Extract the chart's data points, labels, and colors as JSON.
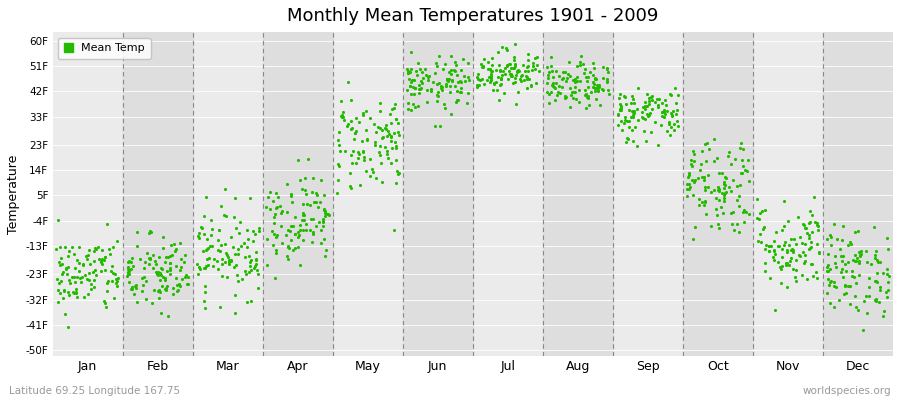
{
  "title": "Monthly Mean Temperatures 1901 - 2009",
  "ylabel": "Temperature",
  "subtitle_left": "Latitude 69.25 Longitude 167.75",
  "subtitle_right": "worldspecies.org",
  "legend_label": "Mean Temp",
  "dot_color": "#22bb00",
  "background_color": "#ffffff",
  "plot_bg_color": "#ebebeb",
  "alt_band_color": "#dedede",
  "grid_line_color": "#888888",
  "ytick_labels": [
    "60F",
    "51F",
    "42F",
    "33F",
    "23F",
    "14F",
    "5F",
    "-4F",
    "-13F",
    "-23F",
    "-32F",
    "-41F",
    "-50F"
  ],
  "ytick_values": [
    60,
    51,
    42,
    33,
    23,
    14,
    5,
    -4,
    -13,
    -23,
    -32,
    -41,
    -50
  ],
  "ylim": [
    -52,
    63
  ],
  "months": [
    "Jan",
    "Feb",
    "Mar",
    "Apr",
    "May",
    "Jun",
    "Jul",
    "Aug",
    "Sep",
    "Oct",
    "Nov",
    "Dec"
  ],
  "month_centers": [
    0.5,
    1.5,
    2.5,
    3.5,
    4.5,
    5.5,
    6.5,
    7.5,
    8.5,
    9.5,
    10.5,
    11.5
  ],
  "month_mean_F": [
    -23,
    -23,
    -15,
    -3,
    24,
    44,
    49,
    44,
    34,
    9,
    -13,
    -22
  ],
  "month_std_F": [
    7,
    7,
    8,
    8,
    9,
    5,
    4,
    4,
    5,
    9,
    8,
    8
  ],
  "n_years": 109,
  "seed": 42
}
